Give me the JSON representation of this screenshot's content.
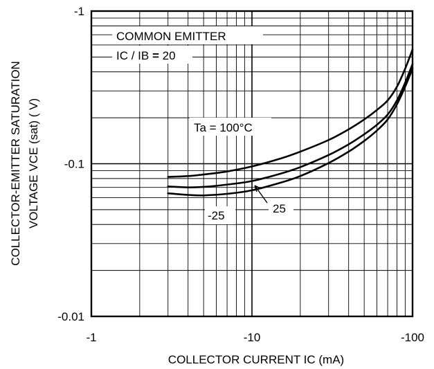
{
  "chart_data": {
    "type": "line",
    "title": "",
    "xlabel": "COLLECTOR CURRENT  IC (mA)",
    "ylabel_line1": "COLLECTOR-EMITTER SATURATION",
    "ylabel_line2": "VOLTAGE  VCE (sat) ( V)",
    "x_scale": "log",
    "y_scale": "log",
    "x_direction": "negative values, magnitude increasing to the right",
    "xlim": [
      -1,
      -100
    ],
    "ylim": [
      -0.01,
      -1
    ],
    "x_tick_labels": [
      "-1",
      "-10",
      "-100"
    ],
    "y_tick_labels": [
      "-1",
      "-0.1",
      "-0.01"
    ],
    "grid": "on",
    "annotations": {
      "condition_1": "COMMON EMITTER",
      "condition_2_prefix": "IC / IB ",
      "condition_2_equals": "=",
      "condition_2_value": " 20",
      "series_label_100": "Ta = 100°C",
      "series_label_25": "25",
      "series_label_m25": "-25"
    },
    "series": [
      {
        "name": "Ta = 100°C",
        "x": [
          -3,
          -4,
          -5,
          -7,
          -10,
          -15,
          -20,
          -30,
          -40,
          -50,
          -60,
          -70,
          -80,
          -90,
          -100
        ],
        "y": [
          -0.082,
          -0.083,
          -0.085,
          -0.089,
          -0.096,
          -0.108,
          -0.12,
          -0.143,
          -0.168,
          -0.195,
          -0.225,
          -0.26,
          -0.32,
          -0.42,
          -0.56
        ]
      },
      {
        "name": "25",
        "x": [
          -3,
          -4,
          -5,
          -7,
          -10,
          -15,
          -20,
          -30,
          -40,
          -50,
          -60,
          -70,
          -80,
          -90,
          -100
        ],
        "y": [
          -0.071,
          -0.07,
          -0.0705,
          -0.073,
          -0.077,
          -0.086,
          -0.095,
          -0.114,
          -0.134,
          -0.156,
          -0.18,
          -0.21,
          -0.26,
          -0.34,
          -0.45
        ]
      },
      {
        "name": "-25",
        "x": [
          -3,
          -4,
          -5,
          -7,
          -10,
          -15,
          -20,
          -30,
          -40,
          -50,
          -60,
          -70,
          -80,
          -90,
          -100
        ],
        "y": [
          -0.064,
          -0.0625,
          -0.062,
          -0.0635,
          -0.067,
          -0.075,
          -0.083,
          -0.101,
          -0.12,
          -0.141,
          -0.165,
          -0.195,
          -0.245,
          -0.32,
          -0.42
        ]
      }
    ]
  }
}
